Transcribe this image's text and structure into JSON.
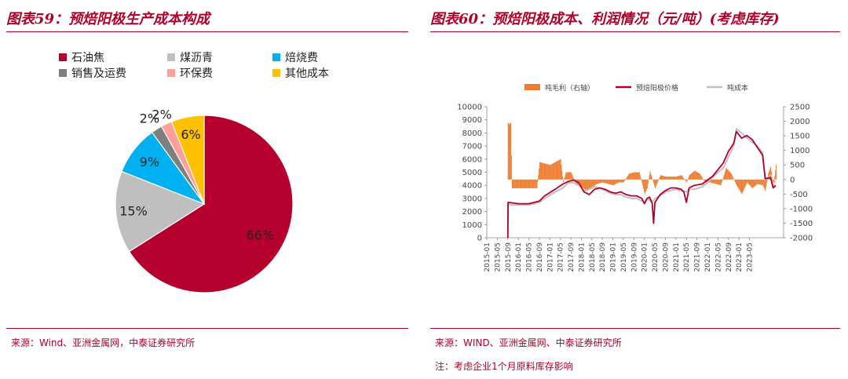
{
  "left_panel": {
    "title": "图表59：预焙阳极生产成本构成",
    "source": "来源：Wind、亚洲金属网，中泰证券研究所",
    "legend": [
      {
        "label": "石油焦",
        "color": "#b5002d"
      },
      {
        "label": "煤沥青",
        "color": "#bfbfbf"
      },
      {
        "label": "焙烧费",
        "color": "#00b0f0"
      },
      {
        "label": "销售及运费",
        "color": "#7f7f7f"
      },
      {
        "label": "环保费",
        "color": "#ff9f97"
      },
      {
        "label": "其他成本",
        "color": "#ffc000"
      }
    ]
  },
  "right_panel": {
    "title": "图表60：预焙阳极成本、利润情况（元/吨）(考虑库存)",
    "source": "来源：WIND、亚洲金属网、中泰证券研究所",
    "note": "注：考虑企业1个月原料库存影响"
  },
  "chart_data": [
    {
      "type": "pie",
      "categories": [
        "石油焦",
        "煤沥青",
        "焙烧费",
        "销售及运费",
        "环保费",
        "其他成本"
      ],
      "values": [
        66,
        15,
        9,
        2,
        2,
        6
      ],
      "labels": [
        "66%",
        "15%",
        "9%",
        "2%",
        "2%",
        "6%"
      ],
      "colors": [
        "#b5002d",
        "#bfbfbf",
        "#00b0f0",
        "#7f7f7f",
        "#ff9f97",
        "#ffc000"
      ],
      "legend_position": "top"
    },
    {
      "type": "line",
      "legend": [
        "吨毛利（右轴）",
        "预焙阳极价格",
        "吨成本"
      ],
      "series_colors": {
        "吨毛利（右轴）": "#ed7d31",
        "预焙阳极价格": "#b5002d",
        "吨成本": "#bfbfbf"
      },
      "x_tick_labels": [
        "2015-01",
        "2015-05",
        "2015-09",
        "2016-01",
        "2016-05",
        "2016-09",
        "2017-01",
        "2017-05",
        "2017-09",
        "2018-01",
        "2018-05",
        "2018-09",
        "2019-01",
        "2019-05",
        "2019-09",
        "2020-01",
        "2020-05",
        "2020-09",
        "2021-01",
        "2021-05",
        "2021-09",
        "2022-01",
        "2022-05",
        "2022-09",
        "2023-01",
        "2023-05"
      ],
      "y_left": {
        "ylim": [
          0,
          10000
        ],
        "ticks": [
          "0",
          "1000",
          "2000",
          "3000",
          "4000",
          "5000",
          "6000",
          "7000",
          "8000",
          "9000",
          "10000"
        ]
      },
      "y_right": {
        "ylim": [
          -2000,
          2500
        ],
        "ticks": [
          "-2000",
          "-1500",
          "-1000",
          "-500",
          "0",
          "500",
          "1000",
          "1500",
          "2000",
          "2500"
        ]
      },
      "months_key": "months since 2015-01",
      "series": [
        {
          "name": "预焙阳极价格",
          "axis": "left",
          "points": [
            [
              8,
              0
            ],
            [
              8.1,
              2700
            ],
            [
              12,
              2600
            ],
            [
              16,
              2600
            ],
            [
              20,
              2800
            ],
            [
              22,
              3200
            ],
            [
              26,
              3700
            ],
            [
              29,
              4100
            ],
            [
              31,
              4300
            ],
            [
              33,
              4400
            ],
            [
              35,
              4200
            ],
            [
              37,
              3500
            ],
            [
              39,
              3300
            ],
            [
              41,
              3700
            ],
            [
              43,
              3800
            ],
            [
              45,
              3700
            ],
            [
              47,
              3500
            ],
            [
              49,
              3400
            ],
            [
              51,
              3500
            ],
            [
              53,
              3300
            ],
            [
              55,
              3200
            ],
            [
              57,
              3200
            ],
            [
              59,
              3000
            ],
            [
              60,
              2600
            ],
            [
              61,
              3000
            ],
            [
              62,
              3100
            ],
            [
              63,
              2600
            ],
            [
              63.5,
              1100
            ],
            [
              64,
              2700
            ],
            [
              66,
              3300
            ],
            [
              68,
              3600
            ],
            [
              70,
              3800
            ],
            [
              72,
              3800
            ],
            [
              74,
              3700
            ],
            [
              75,
              3500
            ],
            [
              76,
              2700
            ],
            [
              77,
              3800
            ],
            [
              79,
              4000
            ],
            [
              82,
              4100
            ],
            [
              84,
              4400
            ],
            [
              86,
              4700
            ],
            [
              88,
              5200
            ],
            [
              90,
              5700
            ],
            [
              92,
              6600
            ],
            [
              94,
              7200
            ],
            [
              95,
              8100
            ],
            [
              97,
              7600
            ],
            [
              99,
              7800
            ],
            [
              101,
              7500
            ],
            [
              103,
              6900
            ],
            [
              105,
              6300
            ],
            [
              106,
              4500
            ],
            [
              108,
              4600
            ],
            [
              109,
              3800
            ],
            [
              110,
              4000
            ]
          ]
        },
        {
          "name": "吨成本",
          "axis": "left",
          "points": [
            [
              8,
              900
            ],
            [
              8.1,
              2500
            ],
            [
              12,
              2500
            ],
            [
              16,
              2500
            ],
            [
              20,
              2700
            ],
            [
              22,
              3000
            ],
            [
              26,
              3500
            ],
            [
              29,
              3800
            ],
            [
              31,
              4200
            ],
            [
              33,
              4200
            ],
            [
              35,
              4000
            ],
            [
              37,
              3600
            ],
            [
              39,
              3700
            ],
            [
              41,
              3900
            ],
            [
              43,
              3800
            ],
            [
              45,
              3600
            ],
            [
              47,
              3400
            ],
            [
              49,
              3300
            ],
            [
              51,
              3300
            ],
            [
              53,
              3100
            ],
            [
              55,
              3000
            ],
            [
              57,
              3000
            ],
            [
              59,
              2800
            ],
            [
              60,
              2700
            ],
            [
              61,
              3000
            ],
            [
              63,
              2700
            ],
            [
              64,
              3000
            ],
            [
              66,
              3200
            ],
            [
              68,
              3500
            ],
            [
              70,
              3600
            ],
            [
              72,
              3700
            ],
            [
              74,
              3600
            ],
            [
              76,
              3500
            ],
            [
              77,
              3700
            ],
            [
              79,
              3700
            ],
            [
              82,
              3900
            ],
            [
              84,
              4200
            ],
            [
              86,
              4600
            ],
            [
              88,
              5000
            ],
            [
              90,
              5300
            ],
            [
              92,
              6200
            ],
            [
              94,
              7000
            ],
            [
              95,
              8300
            ],
            [
              97,
              8000
            ],
            [
              99,
              7600
            ],
            [
              101,
              7300
            ],
            [
              103,
              7000
            ],
            [
              105,
              6500
            ],
            [
              106,
              4400
            ],
            [
              108,
              4800
            ],
            [
              109,
              4200
            ],
            [
              110,
              4300
            ]
          ]
        },
        {
          "name": "吨毛利（右轴）",
          "axis": "right",
          "points": [
            [
              8,
              1950
            ],
            [
              8.5,
              1900
            ],
            [
              9,
              1950
            ],
            [
              9.5,
              -300
            ],
            [
              12,
              -300
            ],
            [
              16,
              -300
            ],
            [
              19,
              -300
            ],
            [
              20,
              600
            ],
            [
              22,
              550
            ],
            [
              24,
              500
            ],
            [
              26,
              600
            ],
            [
              28,
              700
            ],
            [
              29,
              -100
            ],
            [
              30,
              250
            ],
            [
              32,
              250
            ],
            [
              34,
              -200
            ],
            [
              36,
              -250
            ],
            [
              38,
              -400
            ],
            [
              40,
              -250
            ],
            [
              42,
              -150
            ],
            [
              44,
              -100
            ],
            [
              46,
              -150
            ],
            [
              48,
              -200
            ],
            [
              50,
              -100
            ],
            [
              52,
              -100
            ],
            [
              54,
              200
            ],
            [
              56,
              250
            ],
            [
              58,
              250
            ],
            [
              60,
              -500
            ],
            [
              61,
              -300
            ],
            [
              62,
              300
            ],
            [
              64,
              -300
            ],
            [
              66,
              150
            ],
            [
              68,
              100
            ],
            [
              70,
              100
            ],
            [
              72,
              100
            ],
            [
              74,
              150
            ],
            [
              76,
              -100
            ],
            [
              77,
              150
            ],
            [
              79,
              300
            ],
            [
              81,
              200
            ],
            [
              83,
              -100
            ],
            [
              85,
              -100
            ],
            [
              87,
              -150
            ],
            [
              89,
              -200
            ],
            [
              91,
              400
            ],
            [
              93,
              200
            ],
            [
              95,
              -200
            ],
            [
              97,
              -500
            ],
            [
              99,
              -100
            ],
            [
              101,
              -300
            ],
            [
              103,
              -150
            ],
            [
              105,
              -200
            ],
            [
              106,
              -400
            ],
            [
              107,
              200
            ],
            [
              108,
              450
            ],
            [
              109,
              -250
            ],
            [
              110,
              500
            ]
          ]
        }
      ]
    }
  ]
}
